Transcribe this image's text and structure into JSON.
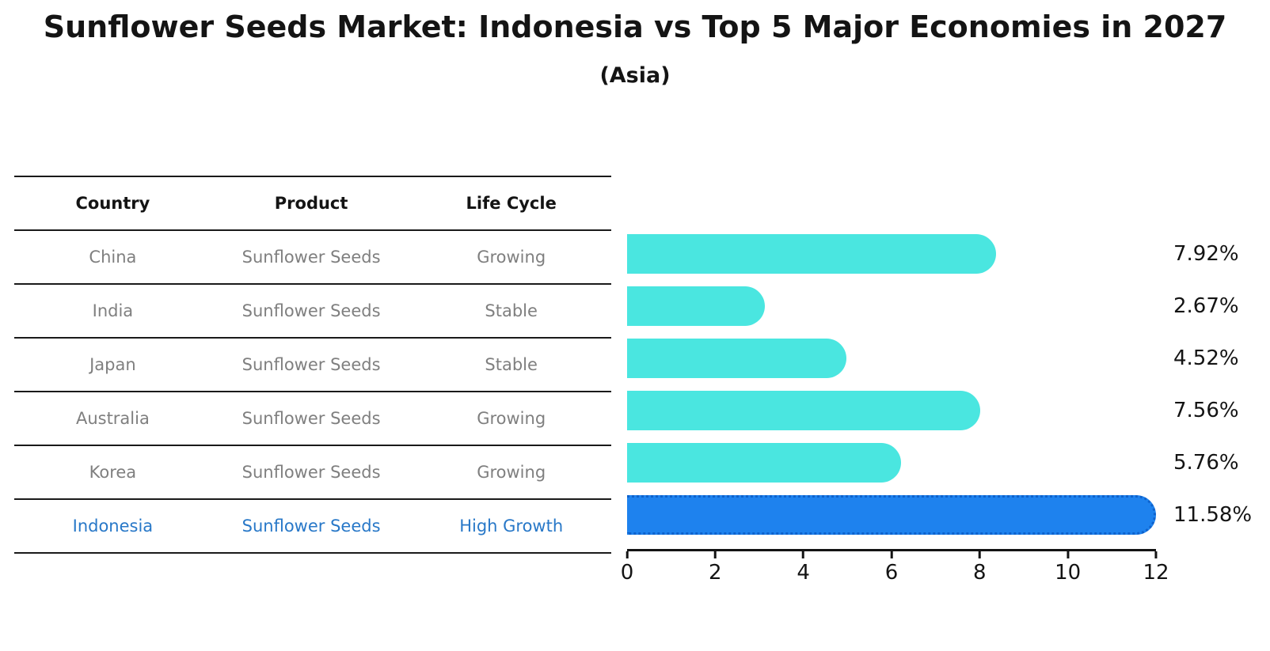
{
  "title": "Sunflower Seeds Market: Indonesia vs Top 5 Major Economies in 2027",
  "subtitle": "(Asia)",
  "table": {
    "headers": [
      "Country",
      "Product",
      "Life Cycle"
    ],
    "rows": [
      {
        "country": "China",
        "product": "Sunflower Seeds",
        "life_cycle": "Growing",
        "highlight": false
      },
      {
        "country": "India",
        "product": "Sunflower Seeds",
        "life_cycle": "Stable",
        "highlight": false
      },
      {
        "country": "Japan",
        "product": "Sunflower Seeds",
        "life_cycle": "Stable",
        "highlight": false
      },
      {
        "country": "Australia",
        "product": "Sunflower Seeds",
        "life_cycle": "Growing",
        "highlight": false
      },
      {
        "country": "Korea",
        "product": "Sunflower Seeds",
        "life_cycle": "Growing",
        "highlight": false
      },
      {
        "country": "Indonesia",
        "product": "Sunflower Seeds",
        "life_cycle": "High Growth",
        "highlight": true
      }
    ]
  },
  "chart_data": {
    "type": "bar",
    "orientation": "horizontal",
    "categories": [
      "China",
      "India",
      "Japan",
      "Australia",
      "Korea",
      "Indonesia"
    ],
    "values": [
      7.92,
      2.67,
      4.52,
      7.56,
      5.76,
      11.58
    ],
    "value_labels": [
      "7.92%",
      "2.67%",
      "4.52%",
      "7.56%",
      "5.76%",
      "11.58%"
    ],
    "xlim": [
      0,
      12
    ],
    "xticks": [
      0,
      2,
      4,
      6,
      8,
      10,
      12
    ],
    "highlight_index": 5,
    "colors": {
      "bar_default": "#4ae6e0",
      "bar_highlight": "#1e82ee",
      "bar_highlight_border": "#0e62cc",
      "highlight_text": "#2878c8",
      "row_text": "#7f7f7f",
      "axis": "#141414"
    },
    "grid": false,
    "legend": false
  }
}
